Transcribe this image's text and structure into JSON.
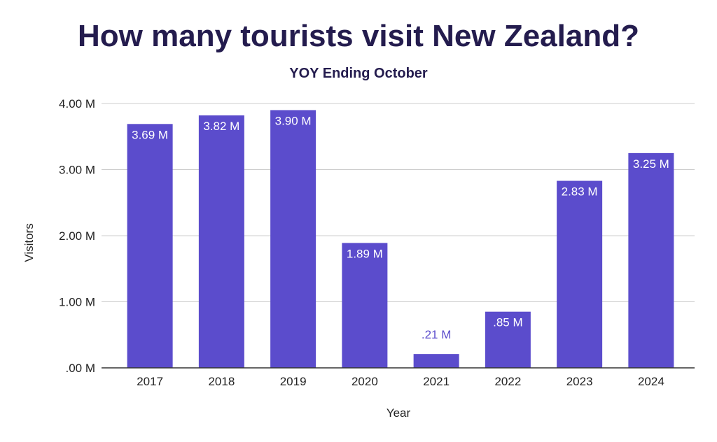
{
  "chart_data": {
    "type": "bar",
    "title": "How many tourists visit New Zealand?",
    "subtitle": "YOY Ending October",
    "xlabel": "Year",
    "ylabel": "Visitors",
    "categories": [
      "2017",
      "2018",
      "2019",
      "2020",
      "2021",
      "2022",
      "2023",
      "2024"
    ],
    "values": [
      3.69,
      3.82,
      3.9,
      1.89,
      0.21,
      0.85,
      2.83,
      3.25
    ],
    "value_unit": "millions",
    "data_labels": [
      "3.69 M",
      "3.82 M",
      "3.90 M",
      "1.89 M",
      ".21 M",
      ".85 M",
      "2.83 M",
      "3.25 M"
    ],
    "ylim": [
      0,
      4
    ],
    "yticks": [
      0,
      1,
      2,
      3,
      4
    ],
    "ytick_labels": [
      ".00 M",
      "1.00 M",
      "2.00 M",
      "3.00 M",
      "4.00 M"
    ],
    "grid": true,
    "legend": "none",
    "colors": {
      "bar": "#5b4ccc",
      "title": "#241c4e",
      "data_label_inside": "#ffffff",
      "data_label_outside": "#5b4ccc",
      "grid": "#cccccc",
      "axis": "#333333"
    }
  }
}
